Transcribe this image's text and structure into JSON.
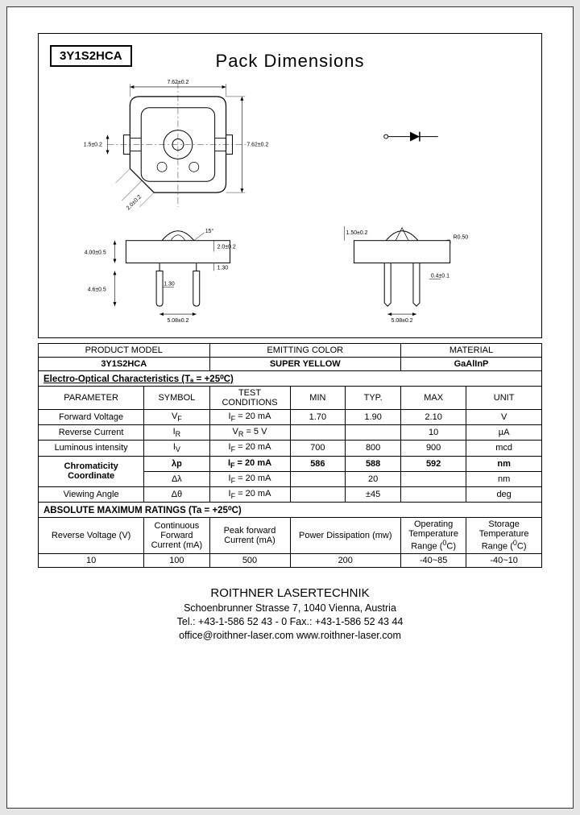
{
  "part_number": "3Y1S2HCA",
  "section_title": "Pack  Dimensions",
  "dims": {
    "top_width": "7.62±0.2",
    "top_height": "7.62±0.2",
    "notch": "1.5±0.2",
    "chamfer": "2.0±0.2",
    "front_body_h": "4.00±0.5",
    "front_lead_gap": "2.0±0.2",
    "front_lead_shelf": "1.30",
    "front_lead_len": "4.6±0.5",
    "front_lead_pitch": "5.08±0.2",
    "front_lead_off": "1.30",
    "side_dome": "1.50±0.2",
    "side_r": "R0.50",
    "side_lead_w": "0.4±0.1",
    "side_lead_pitch": "5.08±0.2"
  },
  "product_header": {
    "c1": "PRODUCT MODEL",
    "c2": "EMITTING COLOR",
    "c3": "MATERIAL",
    "v1": "3Y1S2HCA",
    "v2": "SUPER YELLOW",
    "v3": "GaAlInP"
  },
  "eo_section": "Electro-Optical Characteristics (Tₐ = +25⁰C)",
  "eo_header": {
    "p": "PARAMETER",
    "s": "SYMBOL",
    "tc": "TEST CONDITIONS",
    "min": "MIN",
    "typ": "TYP.",
    "max": "MAX",
    "unit": "UNIT"
  },
  "eo_rows": [
    {
      "p": "Forward Voltage",
      "s": "V",
      "sub": "F",
      "tc": "I_F = 20 mA",
      "min": "1.70",
      "typ": "1.90",
      "max": "2.10",
      "unit": "V",
      "bold": false
    },
    {
      "p": "Reverse Current",
      "s": "I",
      "sub": "R",
      "tc": "V_R = 5 V",
      "min": "",
      "typ": "",
      "max": "10",
      "unit": "µA",
      "bold": false
    },
    {
      "p": "Luminous intensity",
      "s": "I",
      "sub": "V",
      "tc": "I_F = 20 mA",
      "min": "700",
      "typ": "800",
      "max": "900",
      "unit": "mcd",
      "bold": false
    },
    {
      "p": "",
      "s": "λp",
      "sub": "",
      "tc": "I_F = 20 mA",
      "min": "586",
      "typ": "588",
      "max": "592",
      "unit": "nm",
      "bold": true
    },
    {
      "p": "",
      "s": "Δλ",
      "sub": "",
      "tc": "I_F = 20 mA",
      "min": "",
      "typ": "20",
      "max": "",
      "unit": "nm",
      "bold": false
    },
    {
      "p": "Viewing Angle",
      "s": "Δθ",
      "sub": "",
      "tc": "I_F = 20 mA",
      "min": "",
      "typ": "±45",
      "max": "",
      "unit": "deg",
      "bold": false
    }
  ],
  "chrom_label": "Chromaticity Coordinate",
  "amr_section": "ABSOLUTE MAXIMUM RATINGS (Ta = +25⁰C)",
  "amr_header": [
    "Reverse Voltage (V)",
    "Continuous Forward Current (mA)",
    "Peak forward Current (mA)",
    "Power Dissipation (mw)",
    "Operating Temperature Range (⁰C)",
    "Storage Temperature Range (⁰C)"
  ],
  "amr_values": [
    "10",
    "100",
    "500",
    "200",
    "-40~85",
    "-40~10"
  ],
  "footer": {
    "company": "ROITHNER LASERTECHNIK",
    "addr": "Schoenbrunner Strasse 7, 1040 Vienna, Austria",
    "tel": "Tel.: +43-1-586 52 43 - 0    Fax.: +43-1-586 52 43 44",
    "web": "office@roithner-laser.com    www.roithner-laser.com"
  }
}
